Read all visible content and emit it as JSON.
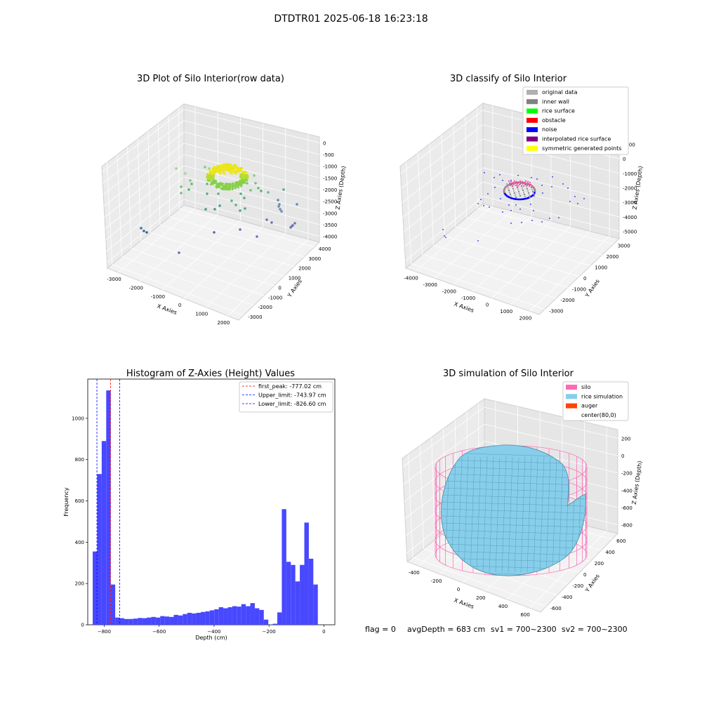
{
  "figure": {
    "suptitle": "DTDTR01 2025-06-18 16:23:18",
    "status": {
      "flag": "flag = 0",
      "avg_depth": "avgDepth = 683 cm",
      "sv1": "sv1 = 700~2300",
      "sv2": "sv2 = 700~2300"
    }
  },
  "panels": {
    "raw": {
      "title": "3D Plot of Silo Interior(row data)",
      "xlabel": "X Axies",
      "ylabel": "Y Axies",
      "zlabel": "Z Axies (Depth)",
      "x_ticks": [
        "-3000",
        "-2000",
        "-1000",
        "0",
        "1000",
        "2000"
      ],
      "y_ticks": [
        "-3000",
        "-2000",
        "-1000",
        "0",
        "1000",
        "2000",
        "3000",
        "4000"
      ],
      "z_ticks": [
        "0",
        "-500",
        "-1000",
        "-1500",
        "-2000",
        "-2500",
        "-3000",
        "-3500",
        "-4000"
      ]
    },
    "classify": {
      "title": "3D classify of Silo Interior",
      "xlabel": "X Axies",
      "ylabel": "Y Axies",
      "zlabel": "Z Axies (Depth)",
      "x_ticks": [
        "-4000",
        "-3000",
        "-2000",
        "-1000",
        "0",
        "1000",
        "2000"
      ],
      "y_ticks": [
        "-3000",
        "-2000",
        "-1000",
        "0",
        "1000",
        "2000",
        "3000"
      ],
      "z_ticks": [
        "1000",
        "0",
        "-1000",
        "-2000",
        "-3000",
        "-4000",
        "-5000"
      ],
      "legend": [
        {
          "label": "original data",
          "color": "#b0b0b0"
        },
        {
          "label": "inner wall",
          "color": "#808080"
        },
        {
          "label": "rice surface",
          "color": "#00ff00"
        },
        {
          "label": "obstacle",
          "color": "#ff0000"
        },
        {
          "label": "noise",
          "color": "#0000ff"
        },
        {
          "label": "interpolated rice surface",
          "color": "#800080"
        },
        {
          "label": "symmetric generated points",
          "color": "#ffff00"
        }
      ]
    },
    "simulation": {
      "title": "3D simulation of Silo Interior",
      "xlabel": "X Axies",
      "ylabel": "Y Axies",
      "zlabel": "Z Axies (Depth)",
      "x_ticks": [
        "-400",
        "-200",
        "0",
        "200",
        "400",
        "600"
      ],
      "y_ticks": [
        "-600",
        "-400",
        "-200",
        "0",
        "200",
        "400",
        "600"
      ],
      "z_ticks": [
        "200",
        "0",
        "-200",
        "-400",
        "-600",
        "-800"
      ],
      "legend": [
        {
          "label": "silo",
          "color": "#ff69b4"
        },
        {
          "label": "rice simulation",
          "color": "#87ceeb"
        },
        {
          "label": "auger",
          "color": "#ff4500"
        },
        {
          "label": "center(80,0)",
          "color": "#ffffff"
        }
      ]
    }
  },
  "chart_data": {
    "type": "bar",
    "title": "Histogram of Z-Axies (Height) Values",
    "xlabel": "Depth (cm)",
    "ylabel": "Frequency",
    "xlim": [
      -860,
      40
    ],
    "ylim": [
      0,
      1190
    ],
    "x_ticks": [
      -800,
      -600,
      -400,
      -200,
      0
    ],
    "y_ticks": [
      0,
      200,
      400,
      600,
      800,
      1000
    ],
    "bar_color": "#4848ff",
    "bin_width": 16.4,
    "bins_start": -842,
    "values": [
      355,
      730,
      890,
      1135,
      195,
      35,
      32,
      28,
      28,
      30,
      33,
      32,
      35,
      38,
      35,
      42,
      40,
      38,
      48,
      45,
      52,
      58,
      55,
      58,
      62,
      65,
      70,
      75,
      85,
      80,
      85,
      90,
      88,
      100,
      90,
      105,
      80,
      72,
      25,
      0,
      5,
      60,
      560,
      305,
      290,
      210,
      290,
      495,
      320,
      195
    ],
    "vlines": [
      {
        "label": "first_peak: -777.02 cm",
        "value": -777.02,
        "color": "#ff0000"
      },
      {
        "label": "Upper_limit: -743.97 cm",
        "value": -743.97,
        "color": "#0000ff"
      },
      {
        "label": "Lower_limit: -826.60 cm",
        "value": -826.6,
        "color": "#0000ff"
      }
    ]
  }
}
